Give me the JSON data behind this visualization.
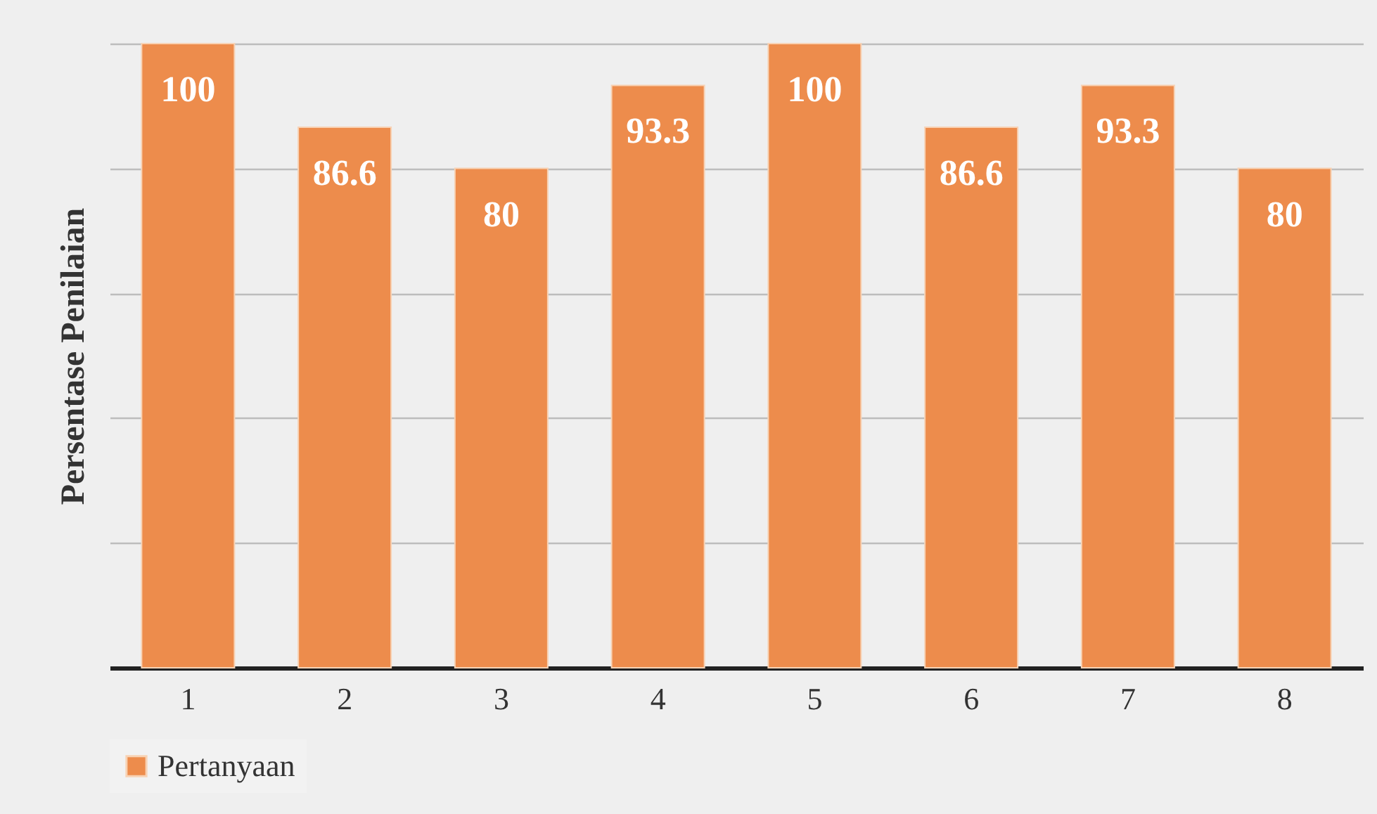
{
  "chart_data": {
    "type": "bar",
    "ylabel": "Persentase Penilaian",
    "categories": [
      "1",
      "2",
      "3",
      "4",
      "5",
      "6",
      "7",
      "8"
    ],
    "series": [
      {
        "name": "Pertanyaan",
        "color": "#ed8c4c",
        "values": [
          100,
          86.6,
          80,
          93.3,
          100,
          86.6,
          93.3,
          80
        ]
      }
    ],
    "ylim": [
      0,
      100
    ],
    "yticks": [
      {
        "value": 0,
        "label": null
      },
      {
        "value": 20,
        "label": null
      },
      {
        "value": 40,
        "label": null
      },
      {
        "value": 60,
        "label": null
      },
      {
        "value": 80,
        "label": null
      },
      {
        "value": 100,
        "label": null
      }
    ],
    "tick_labels": "x",
    "grid": "y",
    "legend": "bottom",
    "data_labels": true
  }
}
